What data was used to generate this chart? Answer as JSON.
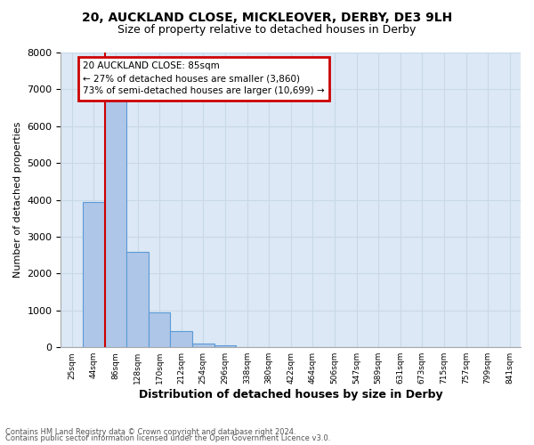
{
  "title1": "20, AUCKLAND CLOSE, MICKLEOVER, DERBY, DE3 9LH",
  "title2": "Size of property relative to detached houses in Derby",
  "xlabel": "Distribution of detached houses by size in Derby",
  "ylabel": "Number of detached properties",
  "bin_labels": [
    "25sqm",
    "44sqm",
    "86sqm",
    "128sqm",
    "170sqm",
    "212sqm",
    "254sqm",
    "296sqm",
    "338sqm",
    "380sqm",
    "422sqm",
    "464sqm",
    "506sqm",
    "547sqm",
    "589sqm",
    "631sqm",
    "673sqm",
    "715sqm",
    "757sqm",
    "799sqm",
    "841sqm"
  ],
  "bar_heights": [
    0,
    3950,
    6700,
    2600,
    950,
    450,
    100,
    50,
    0,
    0,
    0,
    0,
    0,
    0,
    0,
    0,
    0,
    0,
    0,
    0,
    0
  ],
  "bar_color": "#aec6e8",
  "bar_edge_color": "#5b9bd5",
  "bar_edge_width": 0.8,
  "grid_color": "#c8d8e8",
  "background_color": "#dce8f5",
  "ylim": [
    0,
    8000
  ],
  "yticks": [
    0,
    1000,
    2000,
    3000,
    4000,
    5000,
    6000,
    7000,
    8000
  ],
  "property_line_x": 2.0,
  "property_line_color": "#cc0000",
  "annotation_text": "20 AUCKLAND CLOSE: 85sqm\n← 27% of detached houses are smaller (3,860)\n73% of semi-detached houses are larger (10,699) →",
  "annotation_box_color": "#cc0000",
  "footer1": "Contains HM Land Registry data © Crown copyright and database right 2024.",
  "footer2": "Contains public sector information licensed under the Open Government Licence v3.0."
}
